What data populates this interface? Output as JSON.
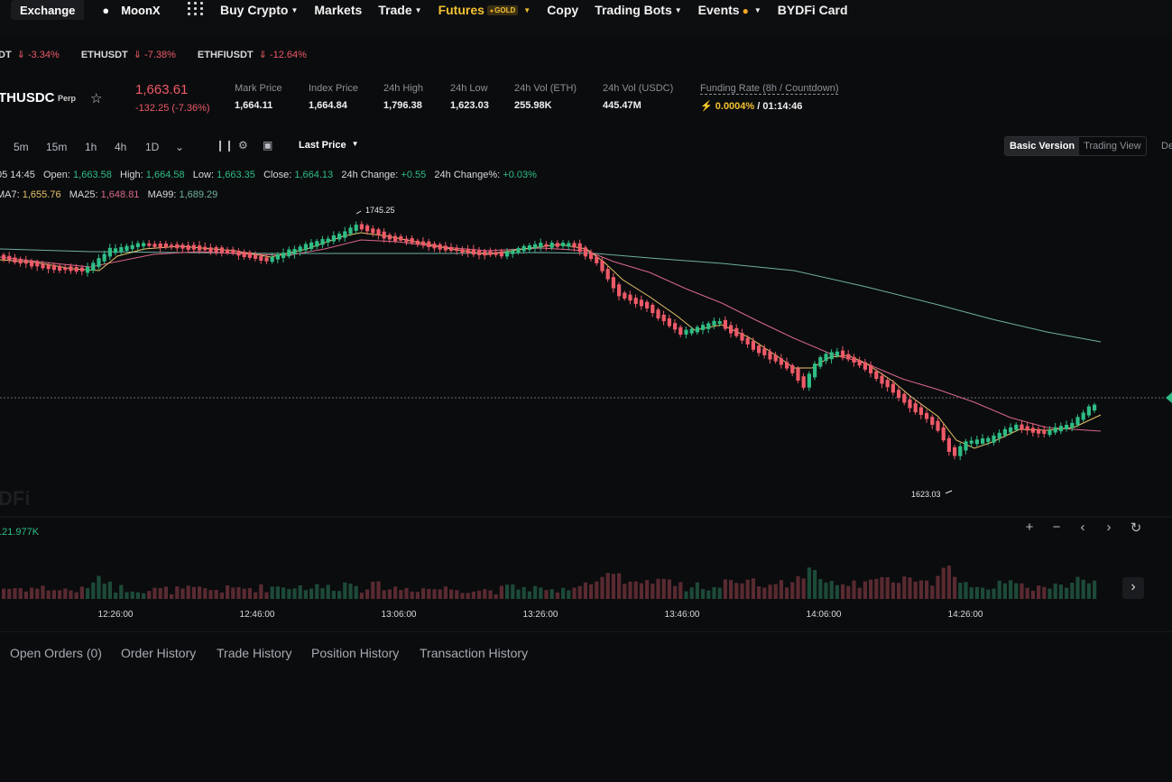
{
  "nav": {
    "exchange": "Exchange",
    "moonx": "MoonX",
    "links": [
      "Buy Crypto",
      "Markets",
      "Trade",
      "Futures",
      "Copy",
      "Trading Bots",
      "Events",
      "BYDFi Card"
    ],
    "futures_badge": "GOLD"
  },
  "tickers": [
    {
      "symbol": "DT",
      "change": "-3.34%"
    },
    {
      "symbol": "ETHUSDT",
      "change": "-7.38%"
    },
    {
      "symbol": "ETHFIUSDT",
      "change": "-12.64%"
    }
  ],
  "header": {
    "pair": "THUSDC",
    "contract_type": "Perp",
    "last_price": "1,663.61",
    "last_change": "-132.25 (-7.36%)",
    "stats": [
      {
        "label": "Mark Price",
        "value": "1,664.11"
      },
      {
        "label": "Index Price",
        "value": "1,664.84"
      },
      {
        "label": "24h High",
        "value": "1,796.38"
      },
      {
        "label": "24h Low",
        "value": "1,623.03"
      },
      {
        "label": "24h Vol (ETH)",
        "value": "255.98K"
      },
      {
        "label": "24h Vol (USDC)",
        "value": "445.47M"
      }
    ],
    "funding": {
      "label": "Funding Rate (8h / Countdown)",
      "rate": "0.0004%",
      "countdown": "/ 01:14:46"
    }
  },
  "toolbar": {
    "timeframes": [
      "5m",
      "15m",
      "1h",
      "4h",
      "1D"
    ],
    "price_type": "Last Price",
    "basic_version": "Basic Version",
    "trading_view": "Trading View",
    "extra": "De"
  },
  "ohlc": {
    "time": "05 14:45",
    "open_label": "Open:",
    "open": "1,663.58",
    "high_label": "High:",
    "high": "1,664.58",
    "low_label": "Low:",
    "low": "1,663.35",
    "close_label": "Close:",
    "close": "1,664.13",
    "chg_label": "24h Change:",
    "chg": "+0.55",
    "chgp_label": "24h Change%:",
    "chgp": "+0.03%"
  },
  "ma": {
    "ma7_label": "MA7:",
    "ma7": "1,655.76",
    "ma25_label": "MA25:",
    "ma25": "1,648.81",
    "ma99_label": "MA99:",
    "ma99": "1,689.29"
  },
  "chart_data": {
    "type": "candlestick",
    "high_marker": "1745.25",
    "low_marker": "1623.03",
    "volume_label": "121.977K",
    "x_ticks": [
      "12:26:00",
      "12:46:00",
      "13:06:00",
      "13:26:00",
      "13:46:00",
      "14:06:00",
      "14:26:00"
    ],
    "colors": {
      "up": "#2ebd85",
      "down": "#ee5a68",
      "ma7": "#e8c46a",
      "ma25": "#d9678a",
      "ma99": "#6fb0a2"
    }
  },
  "chart_controls": [
    "zoom-in",
    "zoom-out",
    "scroll-left",
    "scroll-right",
    "reset"
  ],
  "watermark": "DFi",
  "tabs": [
    "Open Orders (0)",
    "Order History",
    "Trade History",
    "Position History",
    "Transaction History"
  ]
}
